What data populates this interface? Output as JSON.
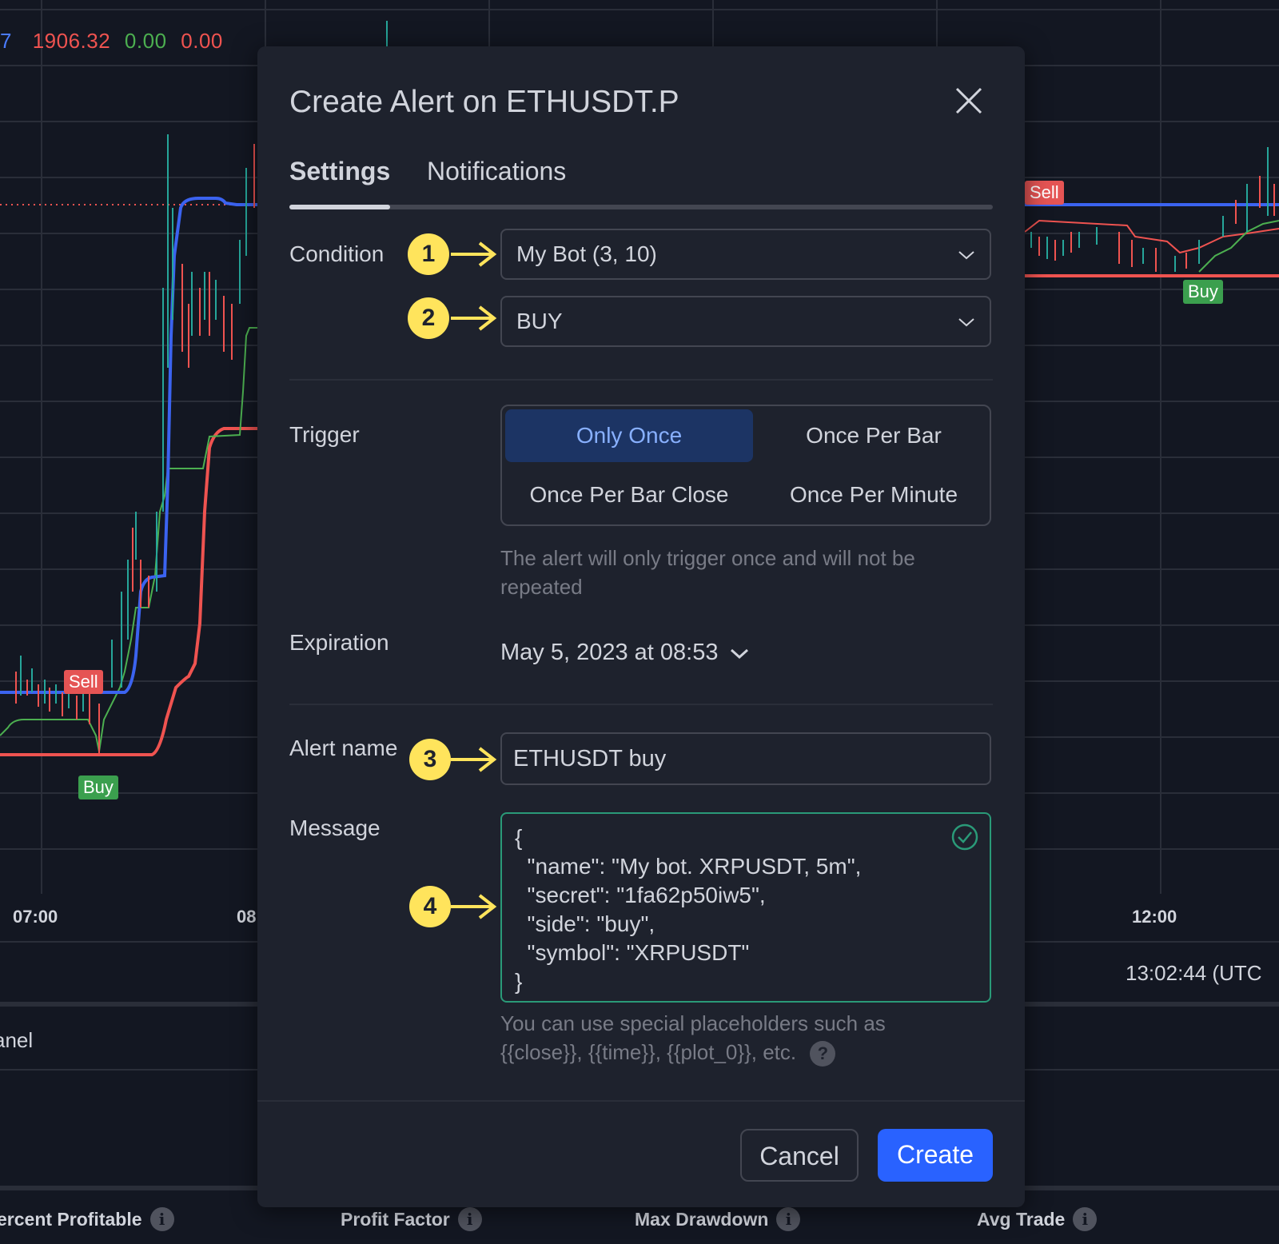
{
  "background_chart": {
    "legend_values": [
      {
        "text": "7",
        "color": "#4a7bff"
      },
      {
        "text": "1906.32",
        "color": "#ef5350"
      },
      {
        "text": "0.00",
        "color": "#4caf50"
      },
      {
        "text": "0.00",
        "color": "#ef5350"
      }
    ],
    "time_labels": [
      "07:00",
      "08",
      "12:00"
    ],
    "clock": "13:02:44 (UTC",
    "markers": {
      "sell": "Sell",
      "buy": "Buy"
    },
    "panel_label": "anel",
    "stats": [
      "ercent Profitable",
      "Profit Factor",
      "Max Drawdown",
      "Avg Trade"
    ]
  },
  "dialog": {
    "title": "Create Alert on ETHUSDT.P",
    "close_icon": "close-icon",
    "tabs": [
      {
        "label": "Settings",
        "active": true
      },
      {
        "label": "Notifications",
        "active": false
      }
    ],
    "condition": {
      "label": "Condition",
      "select1": "My Bot (3, 10)",
      "select2": "BUY"
    },
    "trigger": {
      "label": "Trigger",
      "options": [
        "Only Once",
        "Once Per Bar",
        "Once Per Bar Close",
        "Once Per Minute"
      ],
      "selected": "Only Once",
      "hint_line1": "The alert will only trigger once and will not be",
      "hint_line2": "repeated"
    },
    "expiration": {
      "label": "Expiration",
      "value": "May 5, 2023 at 08:53"
    },
    "alert_name": {
      "label": "Alert name",
      "value": "ETHUSDT buy"
    },
    "message": {
      "label": "Message",
      "lines": [
        "{",
        "  \"name\": \"My bot. XRPUSDT, 5m\",",
        "  \"secret\": \"1fa62p50iw5\",",
        "  \"side\": \"buy\",",
        "  \"symbol\": \"XRPUSDT\"",
        "}"
      ],
      "hint_line1": "You can use special placeholders such as",
      "hint_line2": "{{close}}, {{time}}, {{plot_0}}, etc.",
      "help_icon": "?"
    },
    "buttons": {
      "cancel": "Cancel",
      "create": "Create"
    }
  },
  "annotations": [
    "1",
    "2",
    "3",
    "4"
  ],
  "colors": {
    "accent": "#2962ff",
    "badge": "#ffe45c",
    "valid_border": "#2a9a78"
  }
}
